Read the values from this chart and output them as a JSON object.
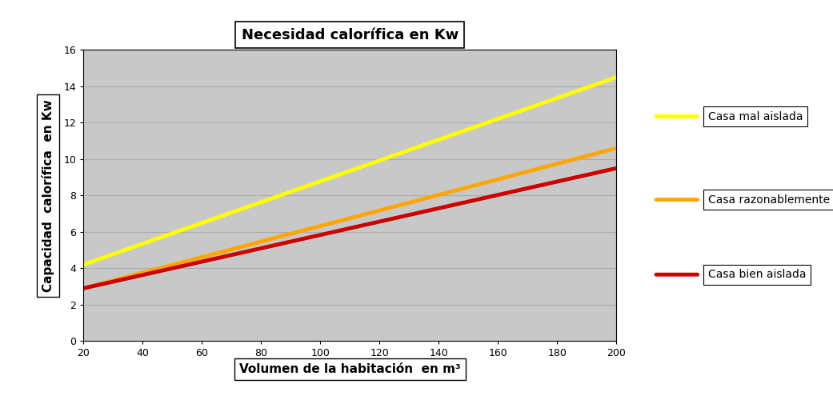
{
  "title": "Necesidad calorífica en Kw",
  "xlabel": "Volumen de la habitación  en m³",
  "ylabel": "Capacidad  calorífica  en Kw",
  "xlim": [
    20,
    200
  ],
  "ylim": [
    0,
    16
  ],
  "xticks": [
    20,
    40,
    60,
    80,
    100,
    120,
    140,
    160,
    180,
    200
  ],
  "yticks": [
    0,
    2,
    4,
    6,
    8,
    10,
    12,
    14,
    16
  ],
  "lines": [
    {
      "label": "Casa mal aislada",
      "color": "#FFFF00",
      "linewidth": 3.5,
      "x": [
        20,
        200
      ],
      "y": [
        4.2,
        14.5
      ]
    },
    {
      "label": "Casa razonablemente aislada",
      "color": "#FFA500",
      "linewidth": 3.5,
      "x": [
        20,
        200
      ],
      "y": [
        2.9,
        10.6
      ]
    },
    {
      "label": "Casa bien aislada",
      "color": "#CC0000",
      "linewidth": 3.5,
      "x": [
        20,
        200
      ],
      "y": [
        2.9,
        9.5
      ]
    }
  ],
  "plot_bg_color": "#C8C8C8",
  "outer_bg_color": "#FFFFFF",
  "grid_color": "#AAAAAA",
  "title_fontsize": 13,
  "axis_label_fontsize": 11,
  "tick_fontsize": 9,
  "legend_fontsize": 10
}
